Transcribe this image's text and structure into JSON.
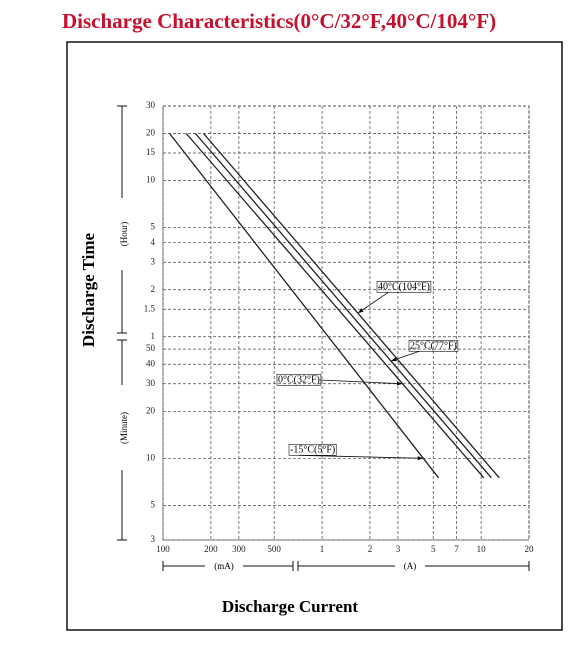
{
  "chart_data": {
    "type": "line",
    "title": "Discharge Characteristics(0°C/32°F,40°C/104°F)",
    "x_label": "Discharge Current",
    "y_label": "Discharge Time",
    "y_unit_upper": "(Hour)",
    "y_unit_lower": "(Minute)",
    "x_unit_left": "(mA)",
    "x_unit_right": "(A)",
    "log_x": true,
    "log_y": true,
    "grid": true,
    "xlim": [
      0.1,
      20
    ],
    "ylim": [
      3,
      1800
    ],
    "xticks": [
      {
        "value": 0.1,
        "label": "100"
      },
      {
        "value": 0.2,
        "label": "200"
      },
      {
        "value": 0.3,
        "label": "300"
      },
      {
        "value": 0.5,
        "label": "500"
      },
      1,
      2,
      3,
      5,
      7,
      10,
      20
    ],
    "yticks": [
      {
        "value": 1800,
        "label": "30"
      },
      {
        "value": 1200,
        "label": "20"
      },
      {
        "value": 900,
        "label": "15"
      },
      {
        "value": 600,
        "label": "10"
      },
      {
        "value": 300,
        "label": "5"
      },
      {
        "value": 240,
        "label": "4"
      },
      {
        "value": 180,
        "label": "3"
      },
      {
        "value": 120,
        "label": "2"
      },
      {
        "value": 90,
        "label": "1.5"
      },
      {
        "value": 60,
        "label": "1"
      },
      50,
      40,
      30,
      20,
      10,
      5,
      3
    ],
    "series": [
      {
        "name": "-15°C(5°F)",
        "color": "#222222",
        "x": [
          0.11,
          5.4
        ],
        "values": [
          1200,
          7.5
        ]
      },
      {
        "name": "0°C(32°F)",
        "color": "#222222",
        "x": [
          0.14,
          10.4
        ],
        "values": [
          1200,
          7.5
        ]
      },
      {
        "name": "25°C(77°F)",
        "color": "#222222",
        "x": [
          0.16,
          11.6
        ],
        "values": [
          1200,
          7.5
        ]
      },
      {
        "name": "40°C(104°F)",
        "color": "#222222",
        "x": [
          0.18,
          13
        ],
        "values": [
          1200,
          7.5
        ]
      }
    ]
  }
}
